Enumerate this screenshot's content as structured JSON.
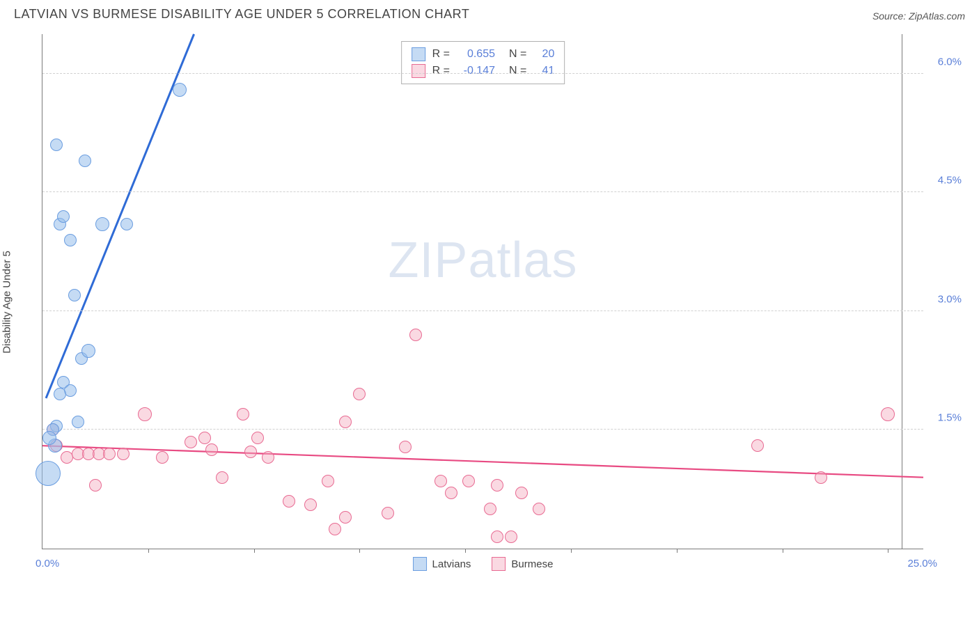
{
  "header": {
    "title": "LATVIAN VS BURMESE DISABILITY AGE UNDER 5 CORRELATION CHART",
    "source_prefix": "Source: ",
    "source": "ZipAtlas.com"
  },
  "chart": {
    "type": "scatter",
    "y_label": "Disability Age Under 5",
    "xlim": [
      0,
      25
    ],
    "ylim": [
      0,
      6.5
    ],
    "xtick_positions": [
      3,
      6,
      9,
      12,
      15,
      18,
      21,
      24
    ],
    "x_axis_label_left": "0.0%",
    "x_axis_label_right": "25.0%",
    "ygrid": [
      {
        "y": 1.5,
        "label": "1.5%"
      },
      {
        "y": 3.0,
        "label": "3.0%"
      },
      {
        "y": 4.5,
        "label": "4.5%"
      },
      {
        "y": 6.0,
        "label": "6.0%"
      }
    ],
    "background_color": "#ffffff",
    "grid_color": "#d0d0d0",
    "axis_color": "#7a7a7a",
    "right_axis_offset_pct": 2.4,
    "watermark": "ZIPatlas",
    "series": {
      "latvians": {
        "label": "Latvians",
        "fill": "rgba(150, 190, 235, 0.55)",
        "stroke": "#6a9de0",
        "line_color": "#2f6bd6",
        "line_width": 3,
        "trend": {
          "x1": 0.1,
          "y1": 1.9,
          "x2": 4.3,
          "y2": 6.5
        },
        "points": [
          {
            "x": 0.4,
            "y": 5.1,
            "r": 9
          },
          {
            "x": 1.2,
            "y": 4.9,
            "r": 9
          },
          {
            "x": 3.9,
            "y": 5.8,
            "r": 10
          },
          {
            "x": 0.5,
            "y": 4.1,
            "r": 9
          },
          {
            "x": 0.6,
            "y": 4.2,
            "r": 9
          },
          {
            "x": 1.7,
            "y": 4.1,
            "r": 10
          },
          {
            "x": 2.4,
            "y": 4.1,
            "r": 9
          },
          {
            "x": 0.8,
            "y": 3.9,
            "r": 9
          },
          {
            "x": 0.9,
            "y": 3.2,
            "r": 9
          },
          {
            "x": 1.1,
            "y": 2.4,
            "r": 9
          },
          {
            "x": 1.3,
            "y": 2.5,
            "r": 10
          },
          {
            "x": 0.6,
            "y": 2.1,
            "r": 9
          },
          {
            "x": 0.8,
            "y": 2.0,
            "r": 9
          },
          {
            "x": 0.5,
            "y": 1.95,
            "r": 9
          },
          {
            "x": 1.0,
            "y": 1.6,
            "r": 9
          },
          {
            "x": 0.4,
            "y": 1.55,
            "r": 9
          },
          {
            "x": 0.3,
            "y": 1.5,
            "r": 9
          },
          {
            "x": 0.35,
            "y": 1.3,
            "r": 10
          },
          {
            "x": 0.2,
            "y": 1.4,
            "r": 10
          },
          {
            "x": 0.15,
            "y": 0.95,
            "r": 18
          }
        ]
      },
      "burmese": {
        "label": "Burmese",
        "fill": "rgba(245, 170, 190, 0.45)",
        "stroke": "#e86a92",
        "line_color": "#e84a82",
        "line_width": 2.2,
        "trend": {
          "x1": 0.0,
          "y1": 1.3,
          "x2": 25.0,
          "y2": 0.9
        },
        "points": [
          {
            "x": 0.3,
            "y": 1.5,
            "r": 9
          },
          {
            "x": 0.4,
            "y": 1.3,
            "r": 9
          },
          {
            "x": 0.7,
            "y": 1.15,
            "r": 9
          },
          {
            "x": 1.0,
            "y": 1.2,
            "r": 9
          },
          {
            "x": 1.3,
            "y": 1.2,
            "r": 9
          },
          {
            "x": 1.6,
            "y": 1.2,
            "r": 9
          },
          {
            "x": 1.9,
            "y": 1.2,
            "r": 9
          },
          {
            "x": 1.5,
            "y": 0.8,
            "r": 9
          },
          {
            "x": 2.3,
            "y": 1.2,
            "r": 9
          },
          {
            "x": 2.9,
            "y": 1.7,
            "r": 10
          },
          {
            "x": 3.4,
            "y": 1.15,
            "r": 9
          },
          {
            "x": 4.2,
            "y": 1.35,
            "r": 9
          },
          {
            "x": 4.6,
            "y": 1.4,
            "r": 9
          },
          {
            "x": 4.8,
            "y": 1.25,
            "r": 9
          },
          {
            "x": 5.1,
            "y": 0.9,
            "r": 9
          },
          {
            "x": 5.7,
            "y": 1.7,
            "r": 9
          },
          {
            "x": 5.9,
            "y": 1.22,
            "r": 9
          },
          {
            "x": 6.1,
            "y": 1.4,
            "r": 9
          },
          {
            "x": 6.4,
            "y": 1.15,
            "r": 9
          },
          {
            "x": 7.0,
            "y": 0.6,
            "r": 9
          },
          {
            "x": 7.6,
            "y": 0.55,
            "r": 9
          },
          {
            "x": 8.1,
            "y": 0.85,
            "r": 9
          },
          {
            "x": 8.3,
            "y": 0.25,
            "r": 9
          },
          {
            "x": 8.6,
            "y": 1.6,
            "r": 9
          },
          {
            "x": 8.6,
            "y": 0.4,
            "r": 9
          },
          {
            "x": 9.0,
            "y": 1.95,
            "r": 9
          },
          {
            "x": 9.8,
            "y": 0.45,
            "r": 9
          },
          {
            "x": 10.3,
            "y": 1.28,
            "r": 9
          },
          {
            "x": 10.6,
            "y": 2.7,
            "r": 9
          },
          {
            "x": 11.3,
            "y": 0.85,
            "r": 9
          },
          {
            "x": 11.6,
            "y": 0.7,
            "r": 9
          },
          {
            "x": 12.1,
            "y": 0.85,
            "r": 9
          },
          {
            "x": 12.7,
            "y": 0.5,
            "r": 9
          },
          {
            "x": 12.9,
            "y": 0.8,
            "r": 9
          },
          {
            "x": 12.9,
            "y": 0.15,
            "r": 9
          },
          {
            "x": 13.3,
            "y": 0.15,
            "r": 9
          },
          {
            "x": 13.6,
            "y": 0.7,
            "r": 9
          },
          {
            "x": 14.1,
            "y": 0.5,
            "r": 9
          },
          {
            "x": 20.3,
            "y": 1.3,
            "r": 9
          },
          {
            "x": 22.1,
            "y": 0.9,
            "r": 9
          },
          {
            "x": 24.0,
            "y": 1.7,
            "r": 10
          }
        ]
      }
    },
    "stats": {
      "rows": [
        {
          "swatch_fill": "rgba(150, 190, 235, 0.55)",
          "swatch_stroke": "#6a9de0",
          "r": "0.655",
          "n": "20"
        },
        {
          "swatch_fill": "rgba(245, 170, 190, 0.45)",
          "swatch_stroke": "#e86a92",
          "r": "-0.147",
          "n": "41"
        }
      ],
      "r_label": "R =",
      "n_label": "N ="
    }
  }
}
